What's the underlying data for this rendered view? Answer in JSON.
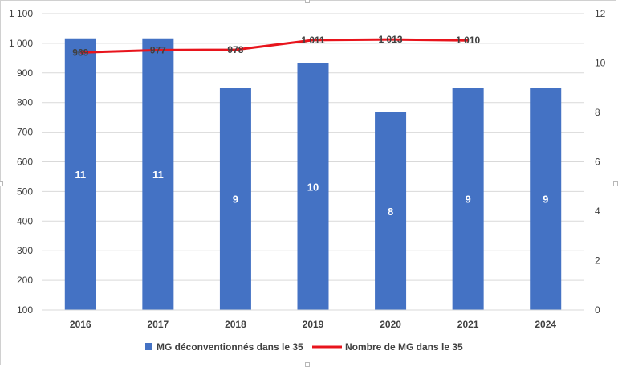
{
  "chart_data": {
    "type": "bar",
    "categories": [
      "2016",
      "2017",
      "2018",
      "2019",
      "2020",
      "2021",
      "2024"
    ],
    "series": [
      {
        "name": "MG déconventionnés dans le 35",
        "kind": "bar",
        "axis": "secondary",
        "color": "#4472C4",
        "values": [
          11,
          11,
          9,
          10,
          8,
          9,
          9
        ],
        "labels": [
          "11",
          "11",
          "9",
          "10",
          "8",
          "9",
          "9"
        ]
      },
      {
        "name": "Nombre de MG dans le 35",
        "kind": "line",
        "axis": "primary",
        "color": "#E8141C",
        "values": [
          969,
          977,
          978,
          1011,
          1013,
          1010,
          null
        ],
        "labels": [
          "969",
          "977",
          "978",
          "1 011",
          "1 013",
          "1 010",
          ""
        ]
      }
    ],
    "y_left": {
      "ylim": [
        100,
        1100
      ],
      "ticks": [
        "100",
        "200",
        "300",
        "400",
        "500",
        "600",
        "700",
        "800",
        "900",
        "1 000",
        "1 100"
      ]
    },
    "y_right": {
      "ylim": [
        0,
        12
      ],
      "ticks": [
        "0",
        "2",
        "4",
        "6",
        "8",
        "10",
        "12"
      ]
    },
    "grid": true,
    "legend": "bottom"
  }
}
